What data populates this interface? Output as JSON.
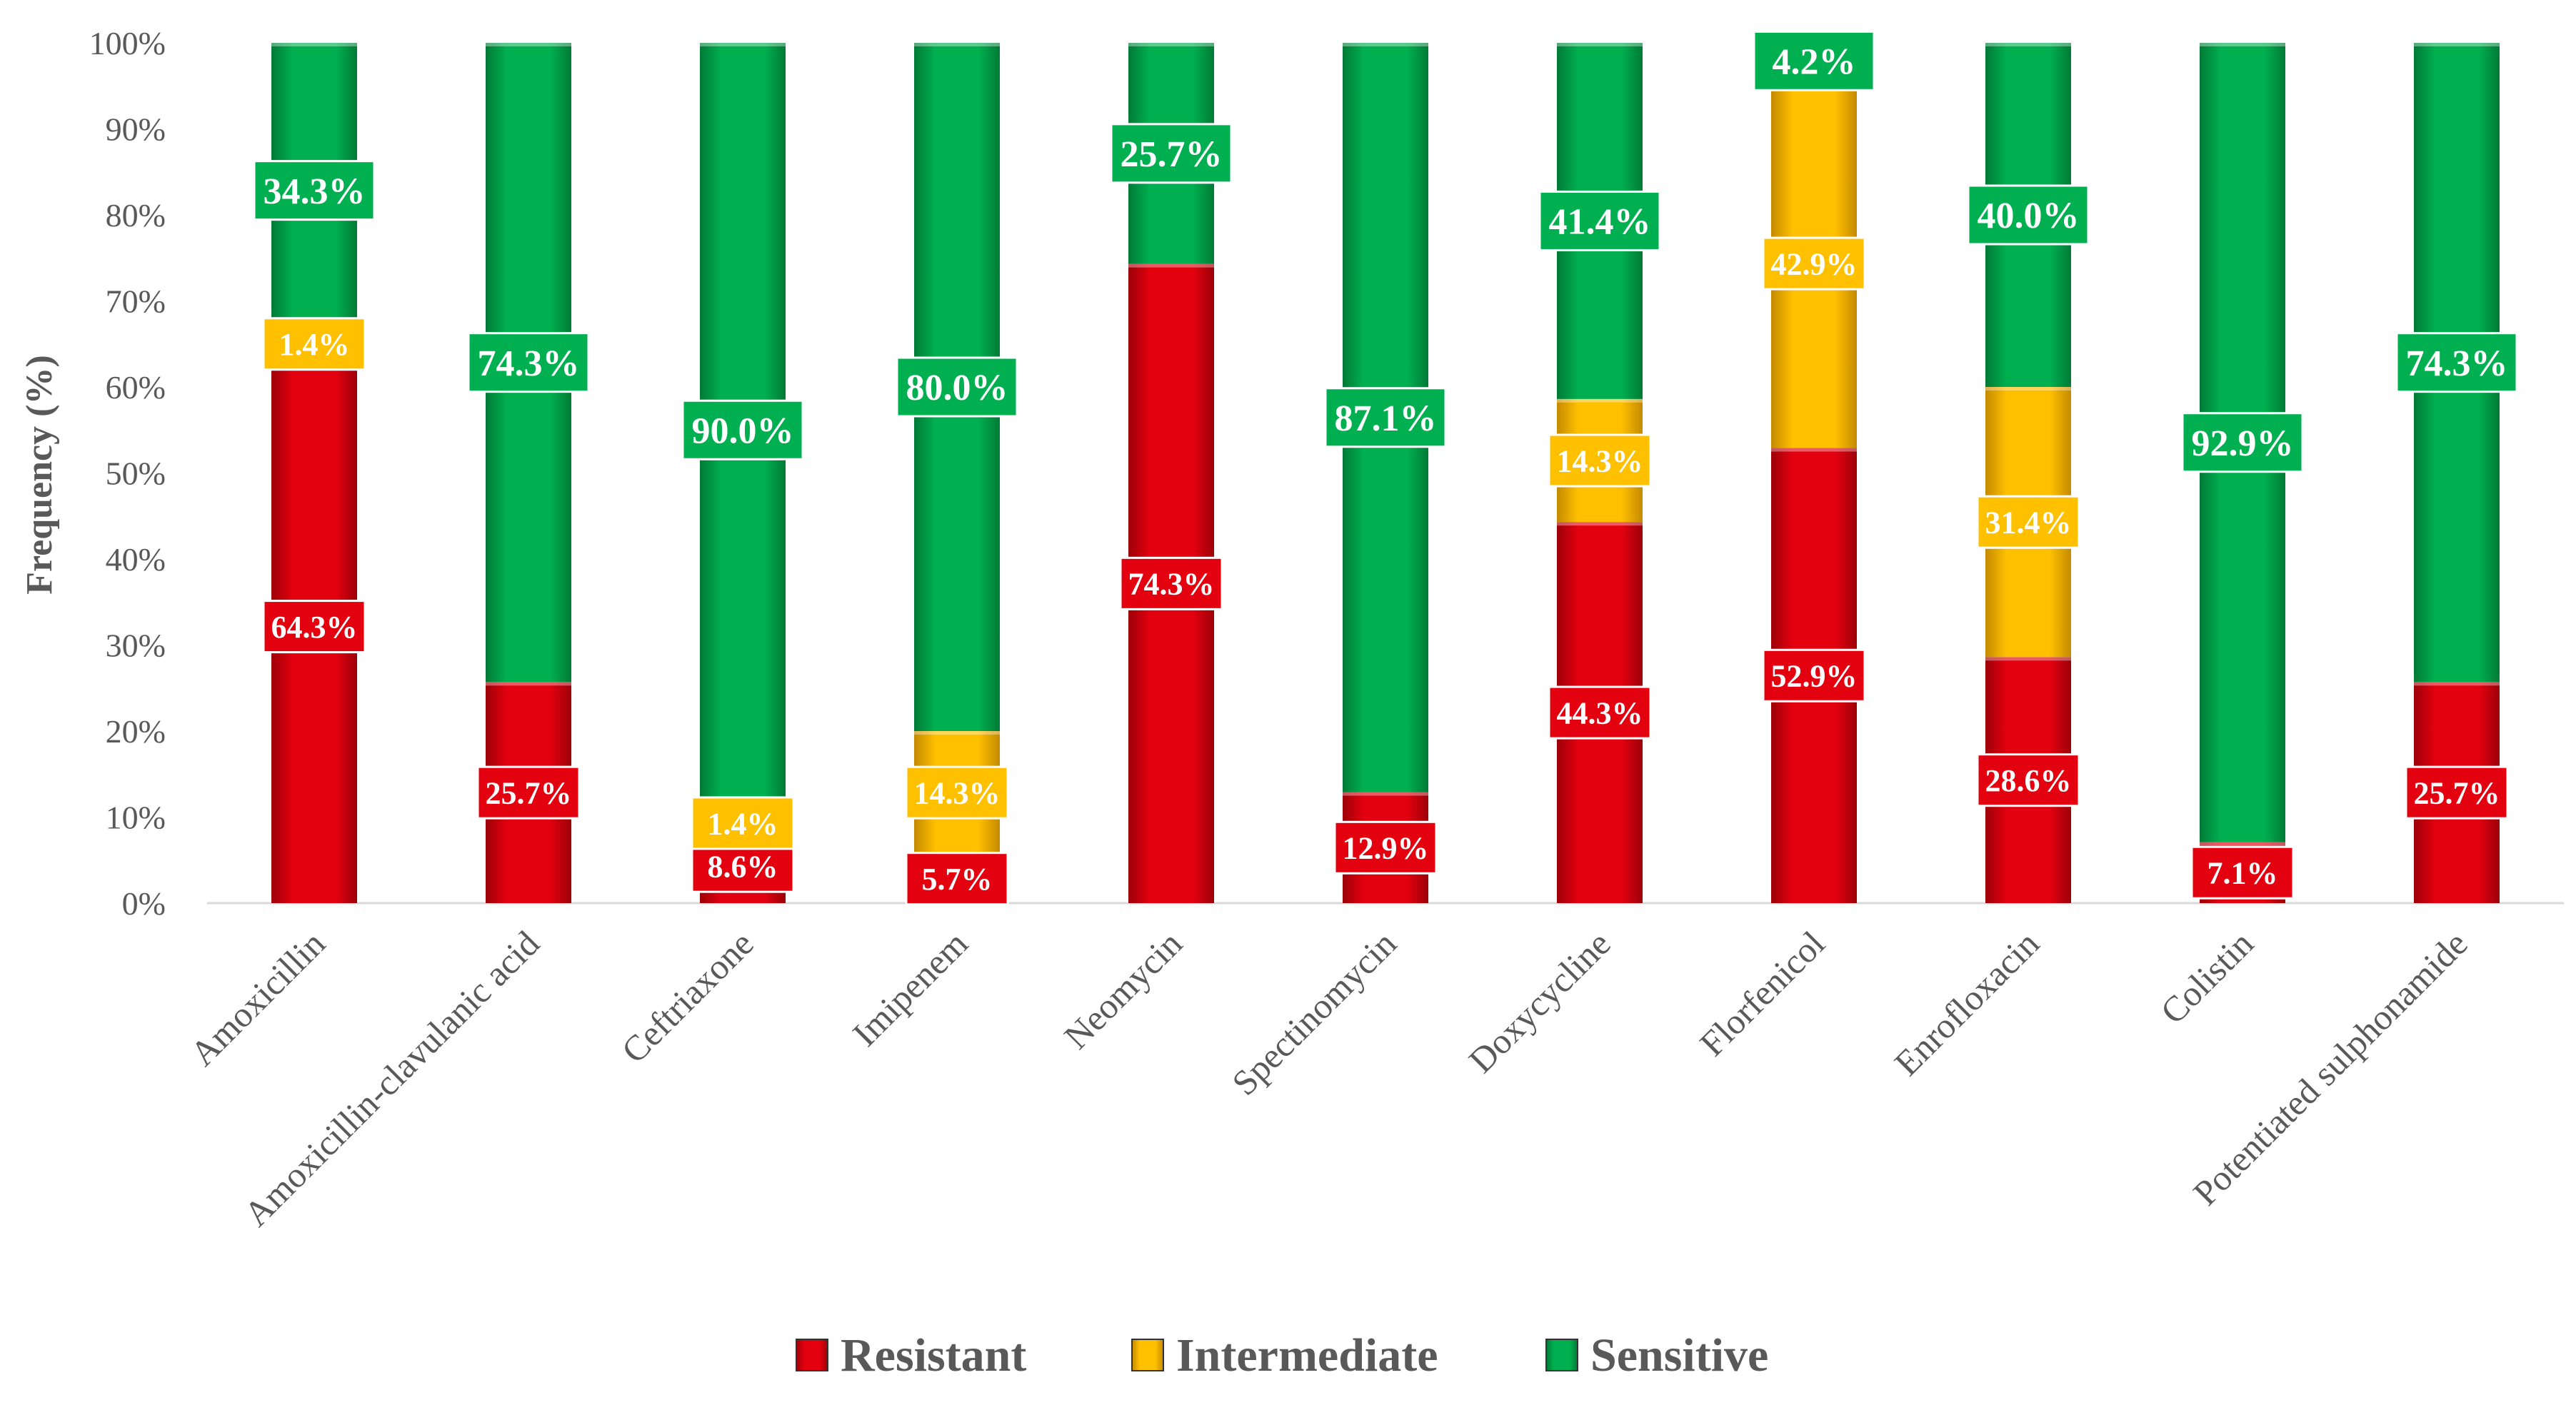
{
  "chart_data": {
    "type": "bar",
    "stacked": true,
    "ylabel": "Frequency (%)",
    "xlabel": "",
    "ylim": [
      0,
      100
    ],
    "yticks": [
      "0%",
      "10%",
      "20%",
      "30%",
      "40%",
      "50%",
      "60%",
      "70%",
      "80%",
      "90%",
      "100%"
    ],
    "grid": false,
    "legend_position": "bottom",
    "categories": [
      "Amoxicillin",
      "Amoxicillin-clavulanic acid",
      "Ceftriaxone",
      "Imipenem",
      "Neomycin",
      "Spectinomycin",
      "Doxycycline",
      "Florfenicol",
      "Enrofloxacin",
      "Colistin",
      "Potentiated sulphonamide"
    ],
    "series": [
      {
        "name": "Resistant",
        "color": "#E3000F",
        "values": [
          64.3,
          25.7,
          8.6,
          5.7,
          74.3,
          12.9,
          44.3,
          52.9,
          28.6,
          7.1,
          25.7
        ],
        "labels": [
          "64.3%",
          "25.7%",
          "8.6%",
          "5.7%",
          "74.3%",
          "12.9%",
          "44.3%",
          "52.9%",
          "28.6%",
          "7.1%",
          "25.7%"
        ]
      },
      {
        "name": "Intermediate",
        "color": "#FFC000",
        "values": [
          1.4,
          0,
          1.4,
          14.3,
          0,
          0,
          14.3,
          42.9,
          31.4,
          0,
          0
        ],
        "labels": [
          "1.4%",
          null,
          "1.4%",
          "14.3%",
          null,
          null,
          "14.3%",
          "42.9%",
          "31.4%",
          null,
          null
        ]
      },
      {
        "name": "Sensitive",
        "color": "#00B050",
        "values": [
          34.3,
          74.3,
          90.0,
          80.0,
          25.7,
          87.1,
          41.4,
          4.2,
          40.0,
          92.9,
          74.3
        ],
        "labels": [
          "34.3%",
          "74.3%",
          "90.0%",
          "80.0%",
          "25.7%",
          "87.1%",
          "41.4%",
          "4.2%",
          "40.0%",
          "92.9%",
          "74.3%"
        ]
      }
    ]
  }
}
